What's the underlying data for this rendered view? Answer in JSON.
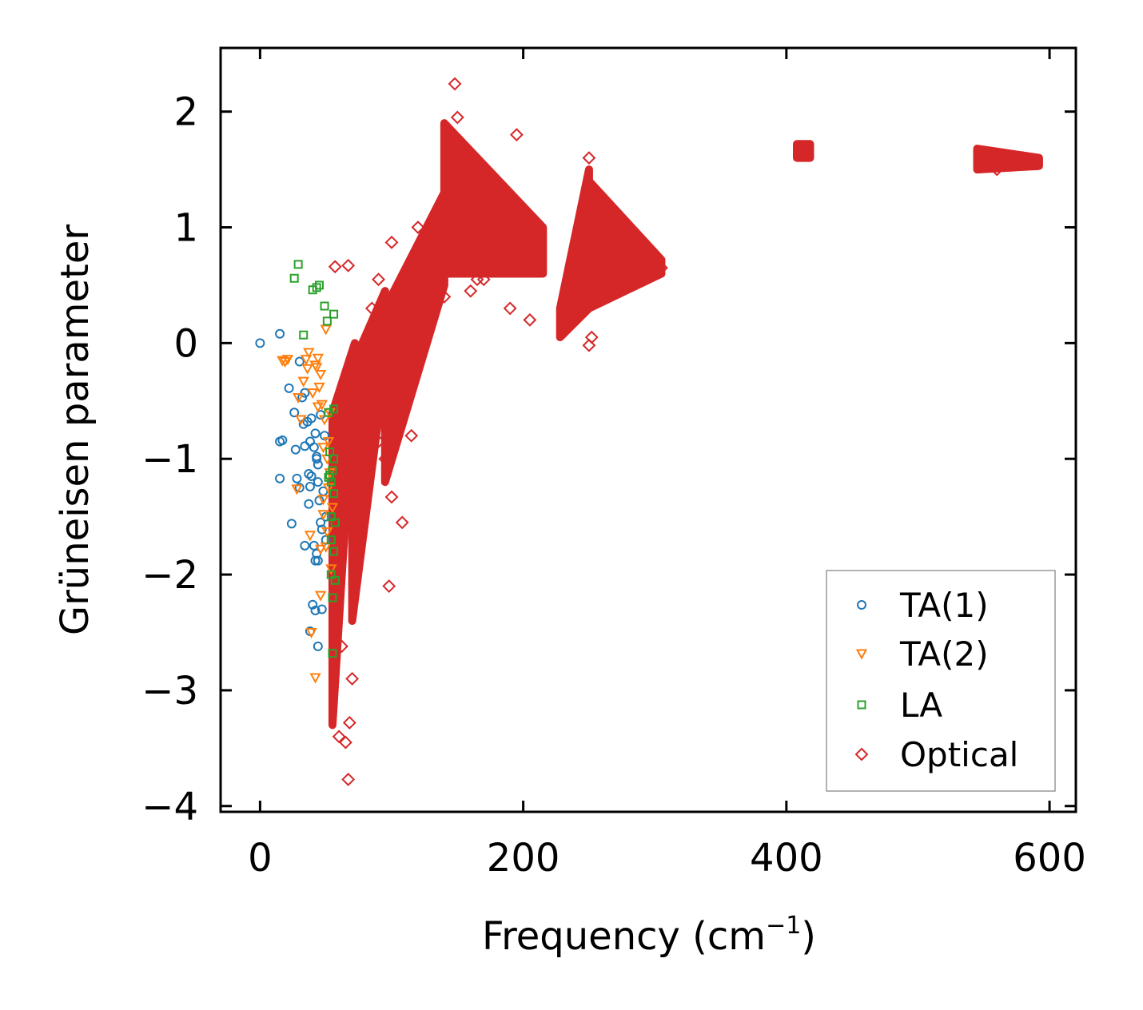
{
  "chart_data": {
    "type": "scatter",
    "title": "",
    "xlabel": "Frequency (cm",
    "xlabel_sup": "−1",
    "xlabel_close": ")",
    "ylabel": "Grüneisen parameter",
    "xlim": [
      -30,
      620
    ],
    "ylim": [
      -4.05,
      2.55
    ],
    "xticks": [
      0,
      200,
      400,
      600
    ],
    "xtick_labels": [
      "0",
      "200",
      "400",
      "600"
    ],
    "yticks": [
      -4,
      -3,
      -2,
      -1,
      0,
      1,
      2
    ],
    "ytick_labels": [
      "−4",
      "−3",
      "−2",
      "−1",
      "0",
      "1",
      "2"
    ],
    "grid": false,
    "legend_position": "lower-right",
    "series": [
      {
        "name": "TA(1)",
        "marker": "circle",
        "color": "#1f77b4",
        "points": [
          [
            0,
            0.0
          ],
          [
            15,
            0.08
          ],
          [
            15,
            -0.85
          ],
          [
            15,
            -1.17
          ],
          [
            17,
            -0.84
          ],
          [
            22,
            -0.39
          ],
          [
            24,
            -1.56
          ],
          [
            26,
            -0.6
          ],
          [
            27,
            -0.92
          ],
          [
            28,
            -1.17
          ],
          [
            30,
            -1.25
          ],
          [
            30,
            -0.16
          ],
          [
            32,
            -0.47
          ],
          [
            33,
            -0.7
          ],
          [
            34,
            -0.43
          ],
          [
            34,
            -0.89
          ],
          [
            34,
            -1.75
          ],
          [
            36,
            -0.68
          ],
          [
            37,
            -1.13
          ],
          [
            37,
            -1.39
          ],
          [
            38,
            -0.85
          ],
          [
            38,
            -1.24
          ],
          [
            38,
            -2.49
          ],
          [
            39,
            -0.65
          ],
          [
            39,
            -1.15
          ],
          [
            40,
            -2.26
          ],
          [
            41,
            -0.9
          ],
          [
            41,
            -1.75
          ],
          [
            42,
            -2.31
          ],
          [
            42,
            -1.88
          ],
          [
            43,
            -0.98
          ],
          [
            43,
            -1.0
          ],
          [
            43,
            -1.82
          ],
          [
            44,
            -1.2
          ],
          [
            44,
            -1.88
          ],
          [
            44,
            -2.62
          ],
          [
            45,
            -1.36
          ],
          [
            46,
            -1.55
          ],
          [
            46,
            -0.62
          ],
          [
            47,
            -1.61
          ],
          [
            47,
            -2.3
          ],
          [
            48,
            -1.28
          ],
          [
            49,
            -0.8
          ],
          [
            50,
            -1.5
          ],
          [
            50,
            -1.7
          ],
          [
            42,
            -0.78
          ],
          [
            44,
            -1.05
          ]
        ]
      },
      {
        "name": "TA(2)",
        "marker": "triangle-down",
        "color": "#ff7f0e",
        "points": [
          [
            17,
            -0.15
          ],
          [
            19,
            -0.16
          ],
          [
            21,
            -0.14
          ],
          [
            29,
            -0.47
          ],
          [
            31,
            -0.66
          ],
          [
            33,
            -0.33
          ],
          [
            35,
            -0.14
          ],
          [
            37,
            -0.08
          ],
          [
            38,
            -1.66
          ],
          [
            40,
            -0.43
          ],
          [
            42,
            -0.19
          ],
          [
            42,
            -2.89
          ],
          [
            43,
            -0.21
          ],
          [
            44,
            -0.13
          ],
          [
            44,
            -0.55
          ],
          [
            45,
            -0.38
          ],
          [
            46,
            -0.27
          ],
          [
            46,
            -2.18
          ],
          [
            47,
            -0.53
          ],
          [
            48,
            -0.9
          ],
          [
            48,
            -1.35
          ],
          [
            48,
            -1.48
          ],
          [
            49,
            -0.66
          ],
          [
            50,
            0.12
          ],
          [
            50,
            -1.76
          ],
          [
            51,
            -1.0
          ],
          [
            51,
            -1.63
          ],
          [
            52,
            -0.85
          ],
          [
            52,
            -1.25
          ],
          [
            53,
            -0.6
          ],
          [
            54,
            -1.95
          ],
          [
            55,
            -1.42
          ],
          [
            28,
            -1.26
          ],
          [
            36,
            -0.22
          ],
          [
            39,
            -2.5
          ],
          [
            46,
            -1.78
          ],
          [
            53,
            -1.12
          ]
        ]
      },
      {
        "name": "LA",
        "marker": "square",
        "color": "#2ca02c",
        "points": [
          [
            26,
            0.56
          ],
          [
            29,
            0.68
          ],
          [
            33,
            0.07
          ],
          [
            40,
            0.46
          ],
          [
            43,
            0.48
          ],
          [
            45,
            0.5
          ],
          [
            49,
            0.32
          ],
          [
            51,
            0.19
          ],
          [
            52,
            -0.6
          ],
          [
            53,
            -0.94
          ],
          [
            53,
            -1.14
          ],
          [
            54,
            -1.2
          ],
          [
            54,
            -1.5
          ],
          [
            54,
            -1.7
          ],
          [
            54,
            -2.0
          ],
          [
            55,
            -2.2
          ],
          [
            55,
            -2.68
          ],
          [
            56,
            -0.57
          ],
          [
            56,
            -1.0
          ],
          [
            56,
            -1.3
          ],
          [
            56,
            -1.8
          ],
          [
            57,
            -1.55
          ],
          [
            57,
            -2.05
          ],
          [
            56,
            0.25
          ],
          [
            52,
            -1.16
          ],
          [
            55,
            -1.1
          ]
        ]
      },
      {
        "name": "Optical",
        "marker": "diamond",
        "color": "#d62728",
        "points": [
          [
            57,
            0.66
          ],
          [
            67,
            0.67
          ],
          [
            72,
            -0.2
          ],
          [
            90,
            -0.85
          ],
          [
            100,
            0.87
          ],
          [
            108,
            -1.55
          ],
          [
            125,
            0.92
          ],
          [
            130,
            0.8
          ],
          [
            140,
            0.4
          ],
          [
            148,
            2.24
          ],
          [
            150,
            1.95
          ],
          [
            155,
            1.6
          ],
          [
            160,
            0.45
          ],
          [
            165,
            0.55
          ],
          [
            170,
            0.55
          ],
          [
            180,
            0.75
          ],
          [
            190,
            0.3
          ],
          [
            195,
            1.8
          ],
          [
            200,
            0.8
          ],
          [
            205,
            0.2
          ],
          [
            210,
            0.95
          ],
          [
            60,
            -3.4
          ],
          [
            65,
            -3.45
          ],
          [
            67,
            -3.77
          ],
          [
            68,
            -3.28
          ],
          [
            70,
            -2.9
          ],
          [
            62,
            -2.62
          ],
          [
            98,
            -2.1
          ],
          [
            100,
            -1.33
          ],
          [
            95,
            -1.0
          ],
          [
            115,
            -0.8
          ],
          [
            90,
            0.55
          ],
          [
            85,
            0.3
          ],
          [
            250,
            1.6
          ],
          [
            252,
            0.05
          ],
          [
            250,
            -0.02
          ],
          [
            270,
            0.8
          ],
          [
            282,
            0.92
          ],
          [
            300,
            0.72
          ],
          [
            305,
            0.65
          ],
          [
            410,
            1.68
          ],
          [
            415,
            1.63
          ],
          [
            550,
            1.6
          ],
          [
            560,
            1.5
          ],
          [
            580,
            1.6
          ],
          [
            590,
            1.55
          ],
          [
            120,
            1.0
          ],
          [
            230,
            0.15
          ],
          [
            245,
            0.4
          ]
        ]
      }
    ],
    "optical_bands": [
      {
        "x": [
          55,
          72
        ],
        "y_lo": [
          -3.3,
          -0.2
        ],
        "y_hi": [
          -0.6,
          0.0
        ]
      },
      {
        "x": [
          70,
          95
        ],
        "y_lo": [
          -2.4,
          -0.2
        ],
        "y_hi": [
          -0.2,
          0.45
        ]
      },
      {
        "x": [
          95,
          140
        ],
        "y_lo": [
          -1.2,
          0.5
        ],
        "y_hi": [
          0.3,
          1.3
        ]
      },
      {
        "x": [
          140,
          215
        ],
        "y_lo": [
          0.6,
          0.6
        ],
        "y_hi": [
          1.9,
          1.0
        ]
      },
      {
        "x": [
          228,
          250
        ],
        "y_lo": [
          0.05,
          0.3
        ],
        "y_hi": [
          0.3,
          1.5
        ]
      },
      {
        "x": [
          250,
          305
        ],
        "y_lo": [
          0.3,
          0.6
        ],
        "y_hi": [
          1.4,
          0.72
        ]
      },
      {
        "x": [
          408,
          418
        ],
        "y_lo": [
          1.6,
          1.6
        ],
        "y_hi": [
          1.72,
          1.72
        ]
      },
      {
        "x": [
          545,
          592
        ],
        "y_lo": [
          1.5,
          1.53
        ],
        "y_hi": [
          1.68,
          1.6
        ]
      }
    ]
  }
}
